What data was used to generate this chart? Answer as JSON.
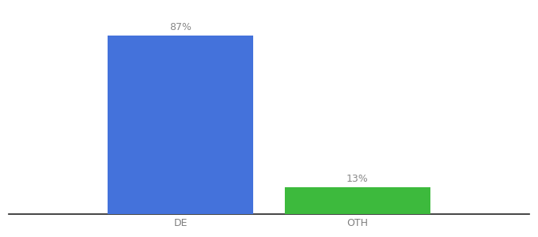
{
  "categories": [
    "DE",
    "OTH"
  ],
  "values": [
    87,
    13
  ],
  "bar_colors": [
    "#4472db",
    "#3dba3d"
  ],
  "label_texts": [
    "87%",
    "13%"
  ],
  "background_color": "#ffffff",
  "ylim": [
    0,
    100
  ],
  "bar_width": 0.28,
  "x_positions": [
    0.33,
    0.67
  ],
  "xlim": [
    0.0,
    1.0
  ],
  "xlabel_fontsize": 9,
  "label_fontsize": 9,
  "tick_color": "#7f7f7f",
  "spine_color": "#222222"
}
